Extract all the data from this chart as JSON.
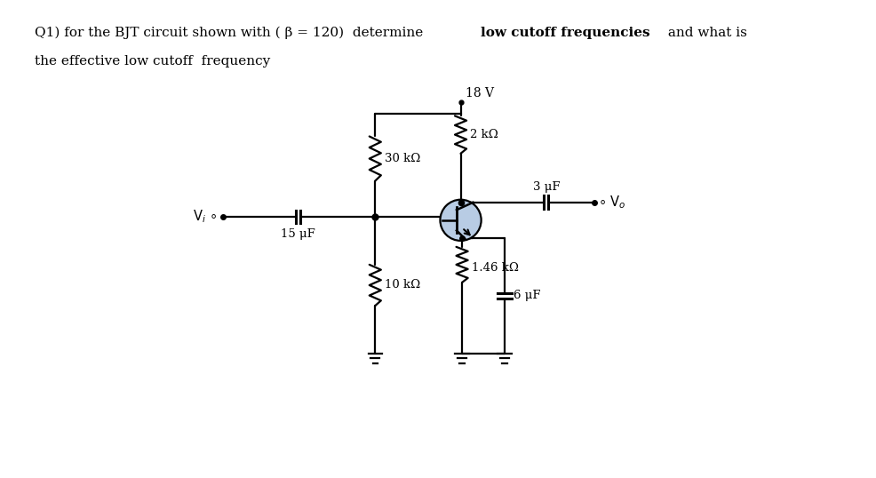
{
  "background_color": "#ffffff",
  "line_color": "#000000",
  "transistor_fill": "#b8cce4",
  "title_part1": "Q1) for the BJT circuit shown with ( β = 120)  determine ",
  "title_bold": "low cutoff frequencies",
  "title_part2": " and what is",
  "title_line2": "the effective low cutoff  frequency",
  "vcc_label": "18 V",
  "r1_label": "30 kΩ",
  "r2_label": "10 kΩ",
  "rc_label": "2 kΩ",
  "re_label": "1.46 kΩ",
  "c1_label": "15 μF",
  "c2_label": "3 μF",
  "c3_label": "6 μF",
  "vi_label": "V",
  "vo_label": "V"
}
